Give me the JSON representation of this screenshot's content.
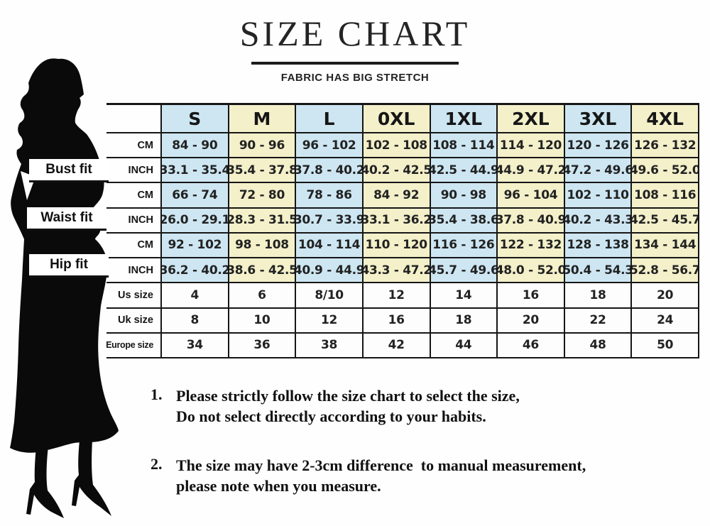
{
  "title": "SIZE CHART",
  "subtitle": "FABRIC HAS BIG STRETCH",
  "fit_labels": {
    "bust": "Bust fit",
    "waist": "Waist fit",
    "hip": "Hip fit"
  },
  "colors": {
    "cell_blue": "#cde6f2",
    "cell_yellow": "#f3f0ca",
    "cell_plain": "#fdfdfd",
    "silhouette": "#0a0a0a"
  },
  "size_table": {
    "columns": [
      "S",
      "M",
      "L",
      "0XL",
      "1XL",
      "2XL",
      "3XL",
      "4XL"
    ],
    "rows": [
      {
        "label": "CM",
        "group": "bust",
        "values": [
          "84 - 90",
          "90 - 96",
          "96 - 102",
          "102 - 108",
          "108 - 114",
          "114 - 120",
          "120 - 126",
          "126 - 132"
        ]
      },
      {
        "label": "INCH",
        "group": "bust",
        "values": [
          "33.1 - 35.4",
          "35.4 - 37.8",
          "37.8 - 40.2",
          "40.2 - 42.5",
          "42.5 - 44.9",
          "44.9 - 47.2",
          "47.2 - 49.6",
          "49.6 - 52.0"
        ]
      },
      {
        "label": "CM",
        "group": "waist",
        "values": [
          "66 - 74",
          "72 - 80",
          "78 - 86",
          "84 - 92",
          "90 - 98",
          "96 - 104",
          "102 - 110",
          "108 - 116"
        ]
      },
      {
        "label": "INCH",
        "group": "waist",
        "values": [
          "26.0 - 29.1",
          "28.3 - 31.5",
          "30.7 - 33.9",
          "33.1 - 36.2",
          "35.4 - 38.6",
          "37.8 - 40.9",
          "40.2 - 43.3",
          "42.5 - 45.7"
        ]
      },
      {
        "label": "CM",
        "group": "hip",
        "values": [
          "92 - 102",
          "98 - 108",
          "104 - 114",
          "110 - 120",
          "116 - 126",
          "122 - 132",
          "128 - 138",
          "134 - 144"
        ]
      },
      {
        "label": "INCH",
        "group": "hip",
        "values": [
          "36.2 - 40.2",
          "38.6 - 42.5",
          "40.9 - 44.9",
          "43.3 - 47.2",
          "45.7 - 49.6",
          "48.0 - 52.0",
          "50.4 - 54.3",
          "52.8 - 56.7"
        ]
      },
      {
        "label": "Us size",
        "group": "sizes",
        "values": [
          "4",
          "6",
          "8/10",
          "12",
          "14",
          "16",
          "18",
          "20"
        ]
      },
      {
        "label": "Uk size",
        "group": "sizes",
        "values": [
          "8",
          "10",
          "12",
          "16",
          "18",
          "20",
          "22",
          "24"
        ]
      },
      {
        "label": "Europe size",
        "group": "sizes",
        "values": [
          "34",
          "36",
          "38",
          "42",
          "44",
          "46",
          "48",
          "50"
        ]
      }
    ]
  },
  "notes": [
    {
      "number": "1.",
      "lines": [
        "Please strictly follow the size chart to select the size,",
        "Do not select directly according to your habits."
      ]
    },
    {
      "number": "2.",
      "lines": [
        "The size may have 2-3cm difference  to manual measurement,",
        "please note when you measure."
      ]
    }
  ]
}
